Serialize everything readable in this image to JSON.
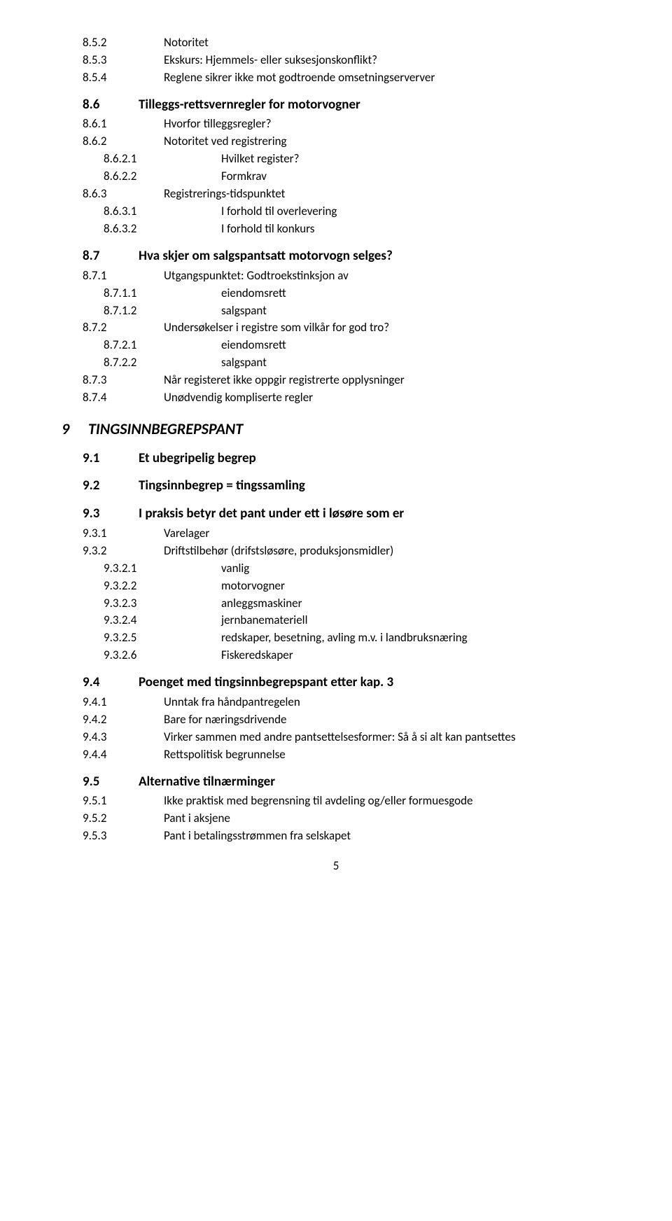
{
  "page_number": "5",
  "colors": {
    "text": "#000000",
    "background": "#ffffff"
  },
  "typography": {
    "family": "Calibri",
    "h1_size_pt": 16,
    "h1_weight": "bold",
    "h1_style": "italic",
    "h2_size_pt": 14,
    "h2_weight": "bold",
    "body_size_pt": 12
  },
  "items": [
    {
      "level": "h3",
      "indent": 2,
      "num": "8.5.2",
      "text": "Notoritet"
    },
    {
      "level": "h3",
      "indent": 2,
      "num": "8.5.3",
      "text": "Ekskurs: Hjemmels- eller suksesjonskonflikt?"
    },
    {
      "level": "h3",
      "indent": 2,
      "num": "8.5.4",
      "text": "Reglene sikrer ikke mot godtroende omsetningserverver"
    },
    {
      "level": "h2",
      "indent": 1,
      "num": "8.6",
      "text": "Tilleggs-rettsvernregler for motorvogner"
    },
    {
      "level": "h3",
      "indent": 2,
      "num": "8.6.1",
      "text": "Hvorfor tilleggsregler?"
    },
    {
      "level": "h3",
      "indent": 2,
      "num": "8.6.2",
      "text": "Notoritet ved registrering"
    },
    {
      "level": "h4",
      "indent": 3,
      "num": "8.6.2.1",
      "text": "Hvilket register?"
    },
    {
      "level": "h4",
      "indent": 3,
      "num": "8.6.2.2",
      "text": "Formkrav"
    },
    {
      "level": "h3",
      "indent": 2,
      "num": "8.6.3",
      "text": "Registrerings-tidspunktet"
    },
    {
      "level": "h4",
      "indent": 3,
      "num": "8.6.3.1",
      "text": "I forhold til overlevering"
    },
    {
      "level": "h4",
      "indent": 3,
      "num": "8.6.3.2",
      "text": "I forhold til konkurs"
    },
    {
      "level": "h2",
      "indent": 1,
      "num": "8.7",
      "text": "Hva skjer om salgspantsatt motorvogn selges?"
    },
    {
      "level": "h3",
      "indent": 2,
      "num": "8.7.1",
      "text": "Utgangspunktet: Godtroekstinksjon av"
    },
    {
      "level": "h4",
      "indent": 3,
      "num": "8.7.1.1",
      "text": "eiendomsrett"
    },
    {
      "level": "h4",
      "indent": 3,
      "num": "8.7.1.2",
      "text": "salgspant"
    },
    {
      "level": "h3",
      "indent": 2,
      "num": "8.7.2",
      "text": "Undersøkelser i registre som vilkår for god tro?"
    },
    {
      "level": "h4",
      "indent": 3,
      "num": "8.7.2.1",
      "text": "eiendomsrett"
    },
    {
      "level": "h4",
      "indent": 3,
      "num": "8.7.2.2",
      "text": "salgspant"
    },
    {
      "level": "h3",
      "indent": 2,
      "num": "8.7.3",
      "text": "Når registeret ikke oppgir registrerte opplysninger"
    },
    {
      "level": "h3",
      "indent": 2,
      "num": "8.7.4",
      "text": "Unødvendig kompliserte regler"
    },
    {
      "level": "h1",
      "indent": 0,
      "num": "9",
      "text": "TINGSINNBEGREPSPANT"
    },
    {
      "level": "h2",
      "indent": 1,
      "num": "9.1",
      "text": "Et ubegripelig begrep"
    },
    {
      "level": "h2",
      "indent": 1,
      "num": "9.2",
      "text": "Tingsinnbegrep = tingssamling"
    },
    {
      "level": "h2",
      "indent": 1,
      "num": "9.3",
      "text": "I praksis betyr det pant under ett i løsøre som er"
    },
    {
      "level": "h3",
      "indent": 2,
      "num": "9.3.1",
      "text": "Varelager"
    },
    {
      "level": "h3",
      "indent": 2,
      "num": "9.3.2",
      "text": "Driftstilbehør (drifstsløsøre, produksjonsmidler)"
    },
    {
      "level": "h4",
      "indent": 3,
      "num": "9.3.2.1",
      "text": "vanlig"
    },
    {
      "level": "h4",
      "indent": 3,
      "num": "9.3.2.2",
      "text": "motorvogner"
    },
    {
      "level": "h4",
      "indent": 3,
      "num": "9.3.2.3",
      "text": "anleggsmaskiner"
    },
    {
      "level": "h4",
      "indent": 3,
      "num": "9.3.2.4",
      "text": "jernbanemateriell"
    },
    {
      "level": "h4",
      "indent": 3,
      "num": "9.3.2.5",
      "text": "redskaper, besetning, avling m.v. i landbruksnæring"
    },
    {
      "level": "h4",
      "indent": 3,
      "num": "9.3.2.6",
      "text": "Fiskeredskaper"
    },
    {
      "level": "h2",
      "indent": 1,
      "num": "9.4",
      "text": "Poenget med tingsinnbegrepspant etter kap. 3"
    },
    {
      "level": "h3",
      "indent": 2,
      "num": "9.4.1",
      "text": "Unntak fra håndpantregelen"
    },
    {
      "level": "h3",
      "indent": 2,
      "num": "9.4.2",
      "text": "Bare for næringsdrivende"
    },
    {
      "level": "h3",
      "indent": 2,
      "num": "9.4.3",
      "text": "Virker sammen med andre pantsettelsesformer: Så å si alt kan pantsettes"
    },
    {
      "level": "h3",
      "indent": 2,
      "num": "9.4.4",
      "text": "Rettspolitisk begrunnelse"
    },
    {
      "level": "h2",
      "indent": 1,
      "num": "9.5",
      "text": "Alternative tilnærminger"
    },
    {
      "level": "h3",
      "indent": 2,
      "num": "9.5.1",
      "text": "Ikke praktisk med begrensning til    avdeling og/eller formuesgode"
    },
    {
      "level": "h3",
      "indent": 2,
      "num": "9.5.2",
      "text": "Pant i aksjene"
    },
    {
      "level": "h3",
      "indent": 2,
      "num": "9.5.3",
      "text": "Pant i betalingsstrømmen fra selskapet"
    }
  ]
}
